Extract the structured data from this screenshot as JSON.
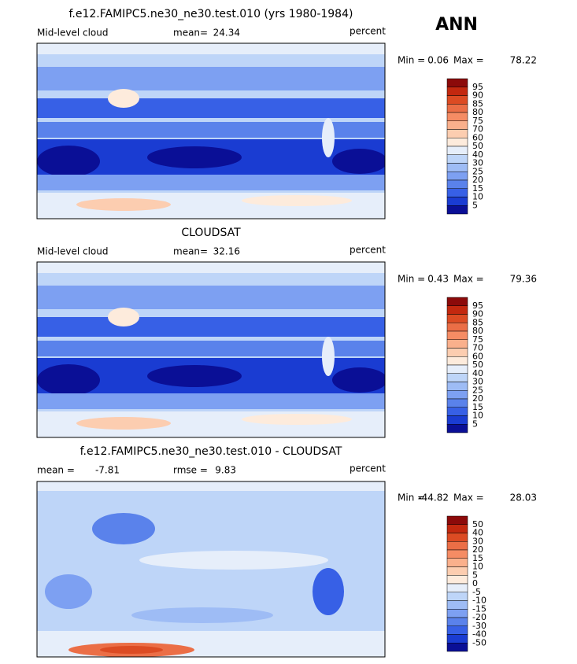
{
  "season": "ANN",
  "panels": [
    {
      "title": "f.e12.FAMIPC5.ne30_ne30.test.010 (yrs 1980-1984)",
      "left_label": "Mid-level cloud",
      "stat1_label": "mean=",
      "stat1": 24.34,
      "units": "percent",
      "min_label": "Min =",
      "min": 0.06,
      "max_label": "Max =",
      "max": 78.22,
      "colorbar": [
        95,
        90,
        85,
        80,
        75,
        70,
        60,
        50,
        40,
        30,
        25,
        20,
        15,
        10,
        5
      ]
    },
    {
      "title": "CLOUDSAT",
      "left_label": "Mid-level cloud",
      "stat1_label": "mean=",
      "stat1": 32.16,
      "units": "percent",
      "min_label": "Min =",
      "min": 0.43,
      "max_label": "Max =",
      "max": 79.36,
      "colorbar": [
        95,
        90,
        85,
        80,
        75,
        70,
        60,
        50,
        40,
        30,
        25,
        20,
        15,
        10,
        5
      ]
    },
    {
      "title": "f.e12.FAMIPC5.ne30_ne30.test.010 - CLOUDSAT",
      "stat1_label": "mean =",
      "stat1": -7.81,
      "stat2_label": "rmse =",
      "stat2": 9.83,
      "units": "percent",
      "min_label": "Min =",
      "min": -44.82,
      "max_label": "Max =",
      "max": 28.03,
      "colorbar": [
        50,
        40,
        30,
        20,
        15,
        10,
        5,
        0,
        -5,
        -10,
        -15,
        -20,
        -30,
        -40,
        -50
      ]
    }
  ],
  "colors": [
    "#8c0a0a",
    "#c3280f",
    "#dc4b23",
    "#eb6e46",
    "#f58c64",
    "#fab08c",
    "#fccdb0",
    "#fdebdc",
    "#e6eefa",
    "#bed5f8",
    "#9ebcf5",
    "#7da0f2",
    "#5a82eb",
    "#3760e6",
    "#1a3cd2",
    "#0a0f96"
  ]
}
